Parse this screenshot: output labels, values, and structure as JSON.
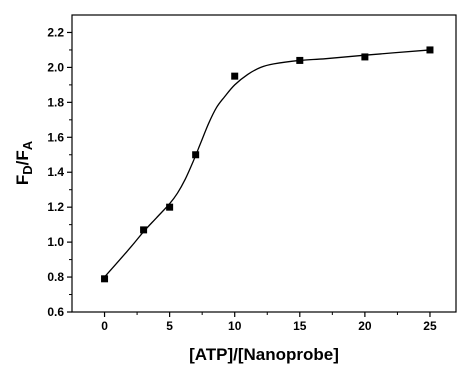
{
  "chart_data": {
    "type": "scatter",
    "title": "",
    "xlabel": "[ATP]/[Nanoprobe]",
    "ylabel": {
      "main1": "F",
      "sub1": "D",
      "slash": "/",
      "main2": "F",
      "sub2": "A"
    },
    "xlim": [
      -2.5,
      27
    ],
    "ylim": [
      0.6,
      2.3
    ],
    "x_ticks": [
      0,
      5,
      10,
      15,
      20,
      25
    ],
    "x_tick_labels": [
      "0",
      "5",
      "10",
      "15",
      "20",
      "25"
    ],
    "y_ticks": [
      0.6,
      0.8,
      1.0,
      1.2,
      1.4,
      1.6,
      1.8,
      2.0,
      2.2
    ],
    "y_tick_labels": [
      "0.6",
      "0.8",
      "1.0",
      "1.2",
      "1.4",
      "1.6",
      "1.8",
      "2.0",
      "2.2"
    ],
    "series": [
      {
        "marker": "square",
        "color": "#000000",
        "x": [
          0,
          3,
          5,
          7,
          10,
          15,
          20,
          25
        ],
        "y": [
          0.79,
          1.07,
          1.2,
          1.5,
          1.95,
          2.04,
          2.06,
          2.1
        ]
      }
    ],
    "fit_curve": {
      "color": "#000000",
      "x": [
        0,
        2,
        3,
        4,
        5,
        5.6,
        6.2,
        6.8,
        7.4,
        8,
        8.6,
        9.2,
        10,
        11,
        12,
        13,
        15,
        17,
        20,
        25
      ],
      "y": [
        0.8,
        0.97,
        1.06,
        1.14,
        1.22,
        1.28,
        1.36,
        1.46,
        1.57,
        1.68,
        1.77,
        1.83,
        1.9,
        1.96,
        2.0,
        2.02,
        2.04,
        2.05,
        2.07,
        2.1
      ]
    },
    "grid": false,
    "legend": "none"
  }
}
